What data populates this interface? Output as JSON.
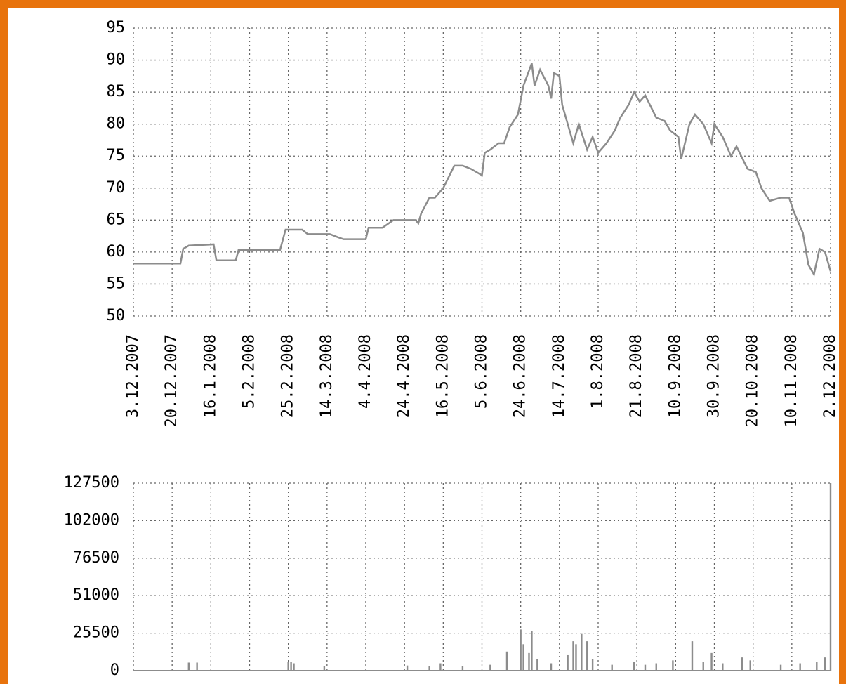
{
  "chart_data": [
    {
      "type": "line",
      "color": "#8c8c8c",
      "grid": true,
      "xlim": [
        0,
        252
      ],
      "xticks": [
        {
          "value": 0,
          "label": "3.12.2007"
        },
        {
          "value": 14,
          "label": "20.12.2007"
        },
        {
          "value": 28,
          "label": "16.1.2008"
        },
        {
          "value": 42,
          "label": "5.2.2008"
        },
        {
          "value": 56,
          "label": "25.2.2008"
        },
        {
          "value": 70,
          "label": "14.3.2008"
        },
        {
          "value": 84,
          "label": "4.4.2008"
        },
        {
          "value": 98,
          "label": "24.4.2008"
        },
        {
          "value": 112,
          "label": "16.5.2008"
        },
        {
          "value": 126,
          "label": "5.6.2008"
        },
        {
          "value": 140,
          "label": "24.6.2008"
        },
        {
          "value": 154,
          "label": "14.7.2008"
        },
        {
          "value": 168,
          "label": "1.8.2008"
        },
        {
          "value": 182,
          "label": "21.8.2008"
        },
        {
          "value": 196,
          "label": "10.9.2008"
        },
        {
          "value": 210,
          "label": "30.9.2008"
        },
        {
          "value": 224,
          "label": "20.10.2008"
        },
        {
          "value": 238,
          "label": "10.11.2008"
        },
        {
          "value": 252,
          "label": "2.12.2008"
        }
      ],
      "ylim": [
        50,
        95
      ],
      "yticks": [
        50,
        55,
        60,
        65,
        70,
        75,
        80,
        85,
        90,
        95
      ],
      "x": [
        0,
        17,
        18,
        20,
        29,
        30,
        37,
        38,
        53,
        55,
        61,
        63,
        71,
        74,
        76,
        84,
        85,
        90,
        94,
        102,
        103,
        104,
        107,
        109,
        112,
        116,
        119,
        122,
        126,
        127,
        129,
        132,
        134,
        136,
        139,
        141,
        144,
        145,
        147,
        150,
        151,
        152,
        154,
        155,
        157,
        159,
        161,
        164,
        166,
        168,
        171,
        174,
        176,
        179,
        181,
        183,
        185,
        189,
        192,
        194,
        197,
        198,
        201,
        203,
        206,
        209,
        210,
        213,
        216,
        218,
        222,
        225,
        227,
        230,
        234,
        237,
        239,
        242,
        244,
        246,
        248,
        250,
        252
      ],
      "values": [
        58.2,
        58.2,
        60.5,
        61,
        61.2,
        58.7,
        58.7,
        60.3,
        60.3,
        63.5,
        63.5,
        62.8,
        62.8,
        62.3,
        62,
        62,
        63.8,
        63.8,
        65,
        65,
        64.5,
        66,
        68.5,
        68.5,
        70,
        73.5,
        73.5,
        73,
        72,
        75.5,
        76,
        77,
        77,
        79.5,
        81.5,
        86,
        89.5,
        86,
        88.5,
        86,
        84,
        88,
        87.5,
        83,
        80,
        77,
        80,
        76,
        78,
        75.5,
        77,
        79,
        81,
        83,
        85,
        83.5,
        84.5,
        81,
        80.5,
        79,
        78,
        74.5,
        80,
        81.5,
        80,
        77,
        80,
        78,
        75,
        76.5,
        73,
        72.5,
        70,
        68,
        68.5,
        68.5,
        66,
        63,
        58,
        56.5,
        60.5,
        60,
        57
      ]
    },
    {
      "type": "bar",
      "color": "#8c8c8c",
      "grid": true,
      "xlim": [
        0,
        252
      ],
      "ylim": [
        0,
        127500
      ],
      "yticks": [
        0,
        25500,
        51000,
        76500,
        102000,
        127500
      ],
      "x": [
        20,
        23,
        56,
        57,
        58,
        69,
        99,
        107,
        111,
        119,
        129,
        135,
        140,
        141,
        143,
        144,
        146,
        151,
        157,
        159,
        160,
        162,
        164,
        166,
        173,
        181,
        185,
        189,
        195,
        202,
        206,
        209,
        213,
        220,
        223,
        234,
        241,
        247,
        250,
        252
      ],
      "values": [
        5500,
        5500,
        6000,
        6000,
        5000,
        3000,
        3500,
        3000,
        5000,
        3000,
        4000,
        13000,
        28000,
        18000,
        12000,
        27000,
        8000,
        5000,
        11000,
        20000,
        18000,
        25000,
        20000,
        8000,
        4000,
        6000,
        4000,
        5000,
        7000,
        20000,
        6000,
        12000,
        5000,
        9000,
        7000,
        4000,
        5000,
        6000,
        9000,
        127500
      ]
    }
  ]
}
